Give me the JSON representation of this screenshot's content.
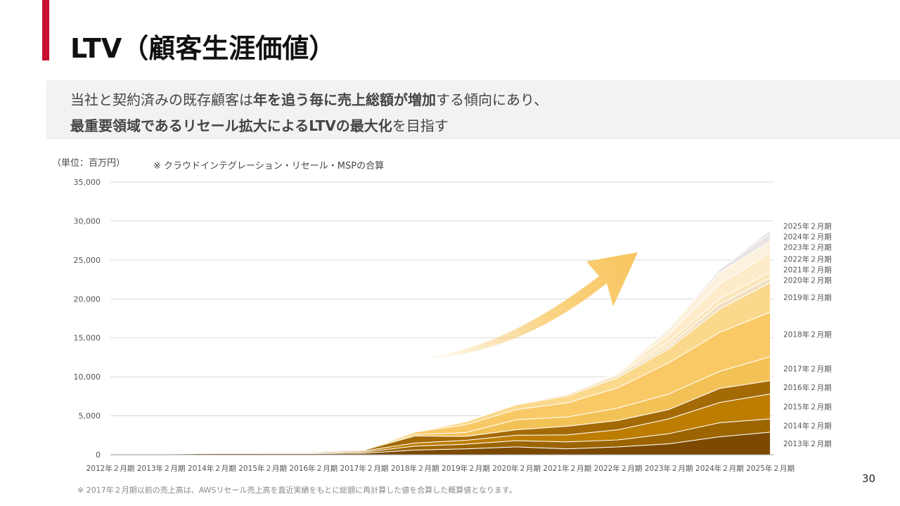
{
  "header": {
    "title": "LTV（顧客生涯価値）",
    "accent_color": "#c8102e"
  },
  "lead": {
    "line1": [
      {
        "text": "当社と契約済みの既存顧客は",
        "bold": false
      },
      {
        "text": "年を追う毎に売上総額が増加",
        "bold": true
      },
      {
        "text": "する傾向にあり、",
        "bold": false
      }
    ],
    "line2": [
      {
        "text": "最重要領域であるリセール拡大によるLTVの最大化",
        "bold": true
      },
      {
        "text": "を目指す",
        "bold": false
      }
    ]
  },
  "unit_label": "（単位：百万円）",
  "scope_note": "※ クラウドインテグレーション・リセール・MSPの合算",
  "footnote": "※ 2017年２月期以前の売上高は、AWSリセール売上高を直近実績をもとに総額に再計算した値を合算した概算値となります。",
  "page_number": "30",
  "chart_data": {
    "type": "area",
    "stacked": true,
    "x": [
      "2012年２月期",
      "2013年２月期",
      "2014年２月期",
      "2015年２月期",
      "2016年２月期",
      "2017年２月期",
      "2018年２月期",
      "2019年２月期",
      "2020年２月期",
      "2021年２月期",
      "2022年２月期",
      "2023年２月期",
      "2024年２月期",
      "2025年２月期"
    ],
    "ylim": [
      0,
      35000
    ],
    "yticks": [
      0,
      5000,
      10000,
      15000,
      20000,
      25000,
      30000,
      35000
    ],
    "ytick_labels": [
      "0",
      "5,000",
      "10,000",
      "15,000",
      "20,000",
      "25,000",
      "30,000",
      "35,000"
    ],
    "grid": true,
    "series": [
      {
        "name": "2013年２月期",
        "color": "#7b4a00",
        "values": [
          0,
          100,
          150,
          150,
          150,
          200,
          600,
          750,
          1000,
          750,
          1000,
          1400,
          2300,
          2900
        ]
      },
      {
        "name": "2014年２月期",
        "color": "#9c6500",
        "values": [
          0,
          0,
          100,
          100,
          100,
          150,
          500,
          600,
          800,
          900,
          900,
          1300,
          1800,
          1700
        ]
      },
      {
        "name": "2015年２月期",
        "color": "#bd7d00",
        "values": [
          0,
          0,
          0,
          100,
          100,
          150,
          400,
          500,
          700,
          900,
          1300,
          1900,
          2600,
          3200
        ]
      },
      {
        "name": "2016年２月期",
        "color": "#a46a05",
        "values": [
          0,
          0,
          0,
          0,
          100,
          100,
          900,
          500,
          700,
          1100,
          1200,
          1200,
          1800,
          1700
        ]
      },
      {
        "name": "2017年２月期",
        "color": "#f3c257",
        "values": [
          0,
          0,
          0,
          0,
          0,
          100,
          200,
          500,
          1300,
          1200,
          1600,
          2000,
          2200,
          3100
        ]
      },
      {
        "name": "2018年２月期",
        "color": "#f9c966",
        "values": [
          0,
          0,
          0,
          0,
          0,
          0,
          300,
          1000,
          1300,
          1800,
          2600,
          4000,
          5000,
          5700
        ]
      },
      {
        "name": "2019年２月期",
        "color": "#fbd98c",
        "values": [
          0,
          0,
          0,
          0,
          0,
          0,
          0,
          400,
          600,
          900,
          1300,
          1800,
          3000,
          3800
        ]
      },
      {
        "name": "2020年２月期",
        "color": "#f1dfc0",
        "values": [
          0,
          0,
          0,
          0,
          0,
          0,
          0,
          0,
          100,
          200,
          300,
          400,
          600,
          600
        ]
      },
      {
        "name": "2021年２月期",
        "color": "#fbe7bd",
        "values": [
          0,
          0,
          0,
          0,
          0,
          0,
          0,
          0,
          0,
          100,
          200,
          500,
          700,
          800
        ]
      },
      {
        "name": "2022年２月期",
        "color": "#fdebc9",
        "values": [
          0,
          0,
          0,
          0,
          0,
          0,
          0,
          0,
          0,
          0,
          100,
          900,
          1900,
          2400
        ]
      },
      {
        "name": "2023年２月期",
        "color": "#fcf1dc",
        "values": [
          0,
          0,
          0,
          0,
          0,
          0,
          0,
          0,
          0,
          0,
          0,
          800,
          1500,
          1500
        ]
      },
      {
        "name": "2024年２月期",
        "color": "#e9e4e3",
        "values": [
          0,
          0,
          0,
          0,
          0,
          0,
          0,
          0,
          0,
          0,
          0,
          0,
          400,
          1000
        ]
      },
      {
        "name": "2025年２月期",
        "color": "#e3e1e1",
        "values": [
          0,
          0,
          0,
          0,
          0,
          0,
          0,
          0,
          0,
          0,
          0,
          0,
          0,
          400
        ]
      }
    ],
    "arrow_color": "#f8c55e"
  }
}
